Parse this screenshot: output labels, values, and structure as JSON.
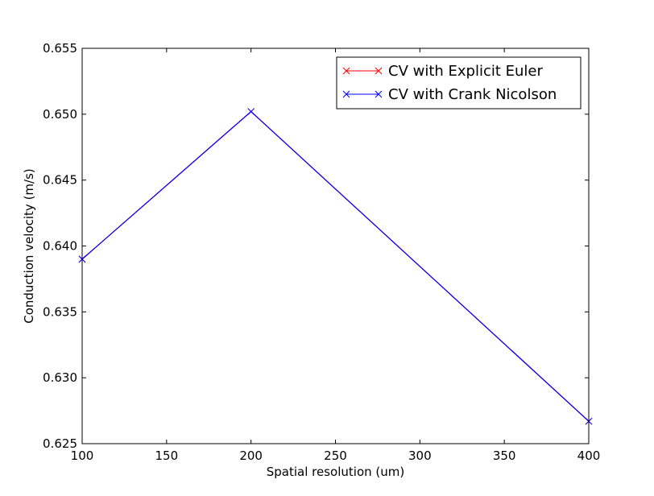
{
  "chart_data": {
    "type": "line",
    "title": "",
    "xlabel": "Spatial resolution (um)",
    "ylabel": "Conduction velocity (m/s)",
    "xlim": [
      100,
      400
    ],
    "ylim": [
      0.625,
      0.655
    ],
    "xticks": [
      100,
      150,
      200,
      250,
      300,
      350,
      400
    ],
    "yticks": [
      0.625,
      0.63,
      0.635,
      0.64,
      0.645,
      0.65,
      0.655
    ],
    "grid": false,
    "legend_position": "top-right",
    "marker": "x",
    "series": [
      {
        "name": "CV with Explicit Euler",
        "color": "#ff0000",
        "x": [
          100,
          200,
          400
        ],
        "y": [
          0.639,
          0.6502,
          0.6267
        ]
      },
      {
        "name": "CV with Crank Nicolson",
        "color": "#0000ff",
        "x": [
          100,
          200,
          400
        ],
        "y": [
          0.639,
          0.6502,
          0.6267
        ]
      }
    ]
  }
}
